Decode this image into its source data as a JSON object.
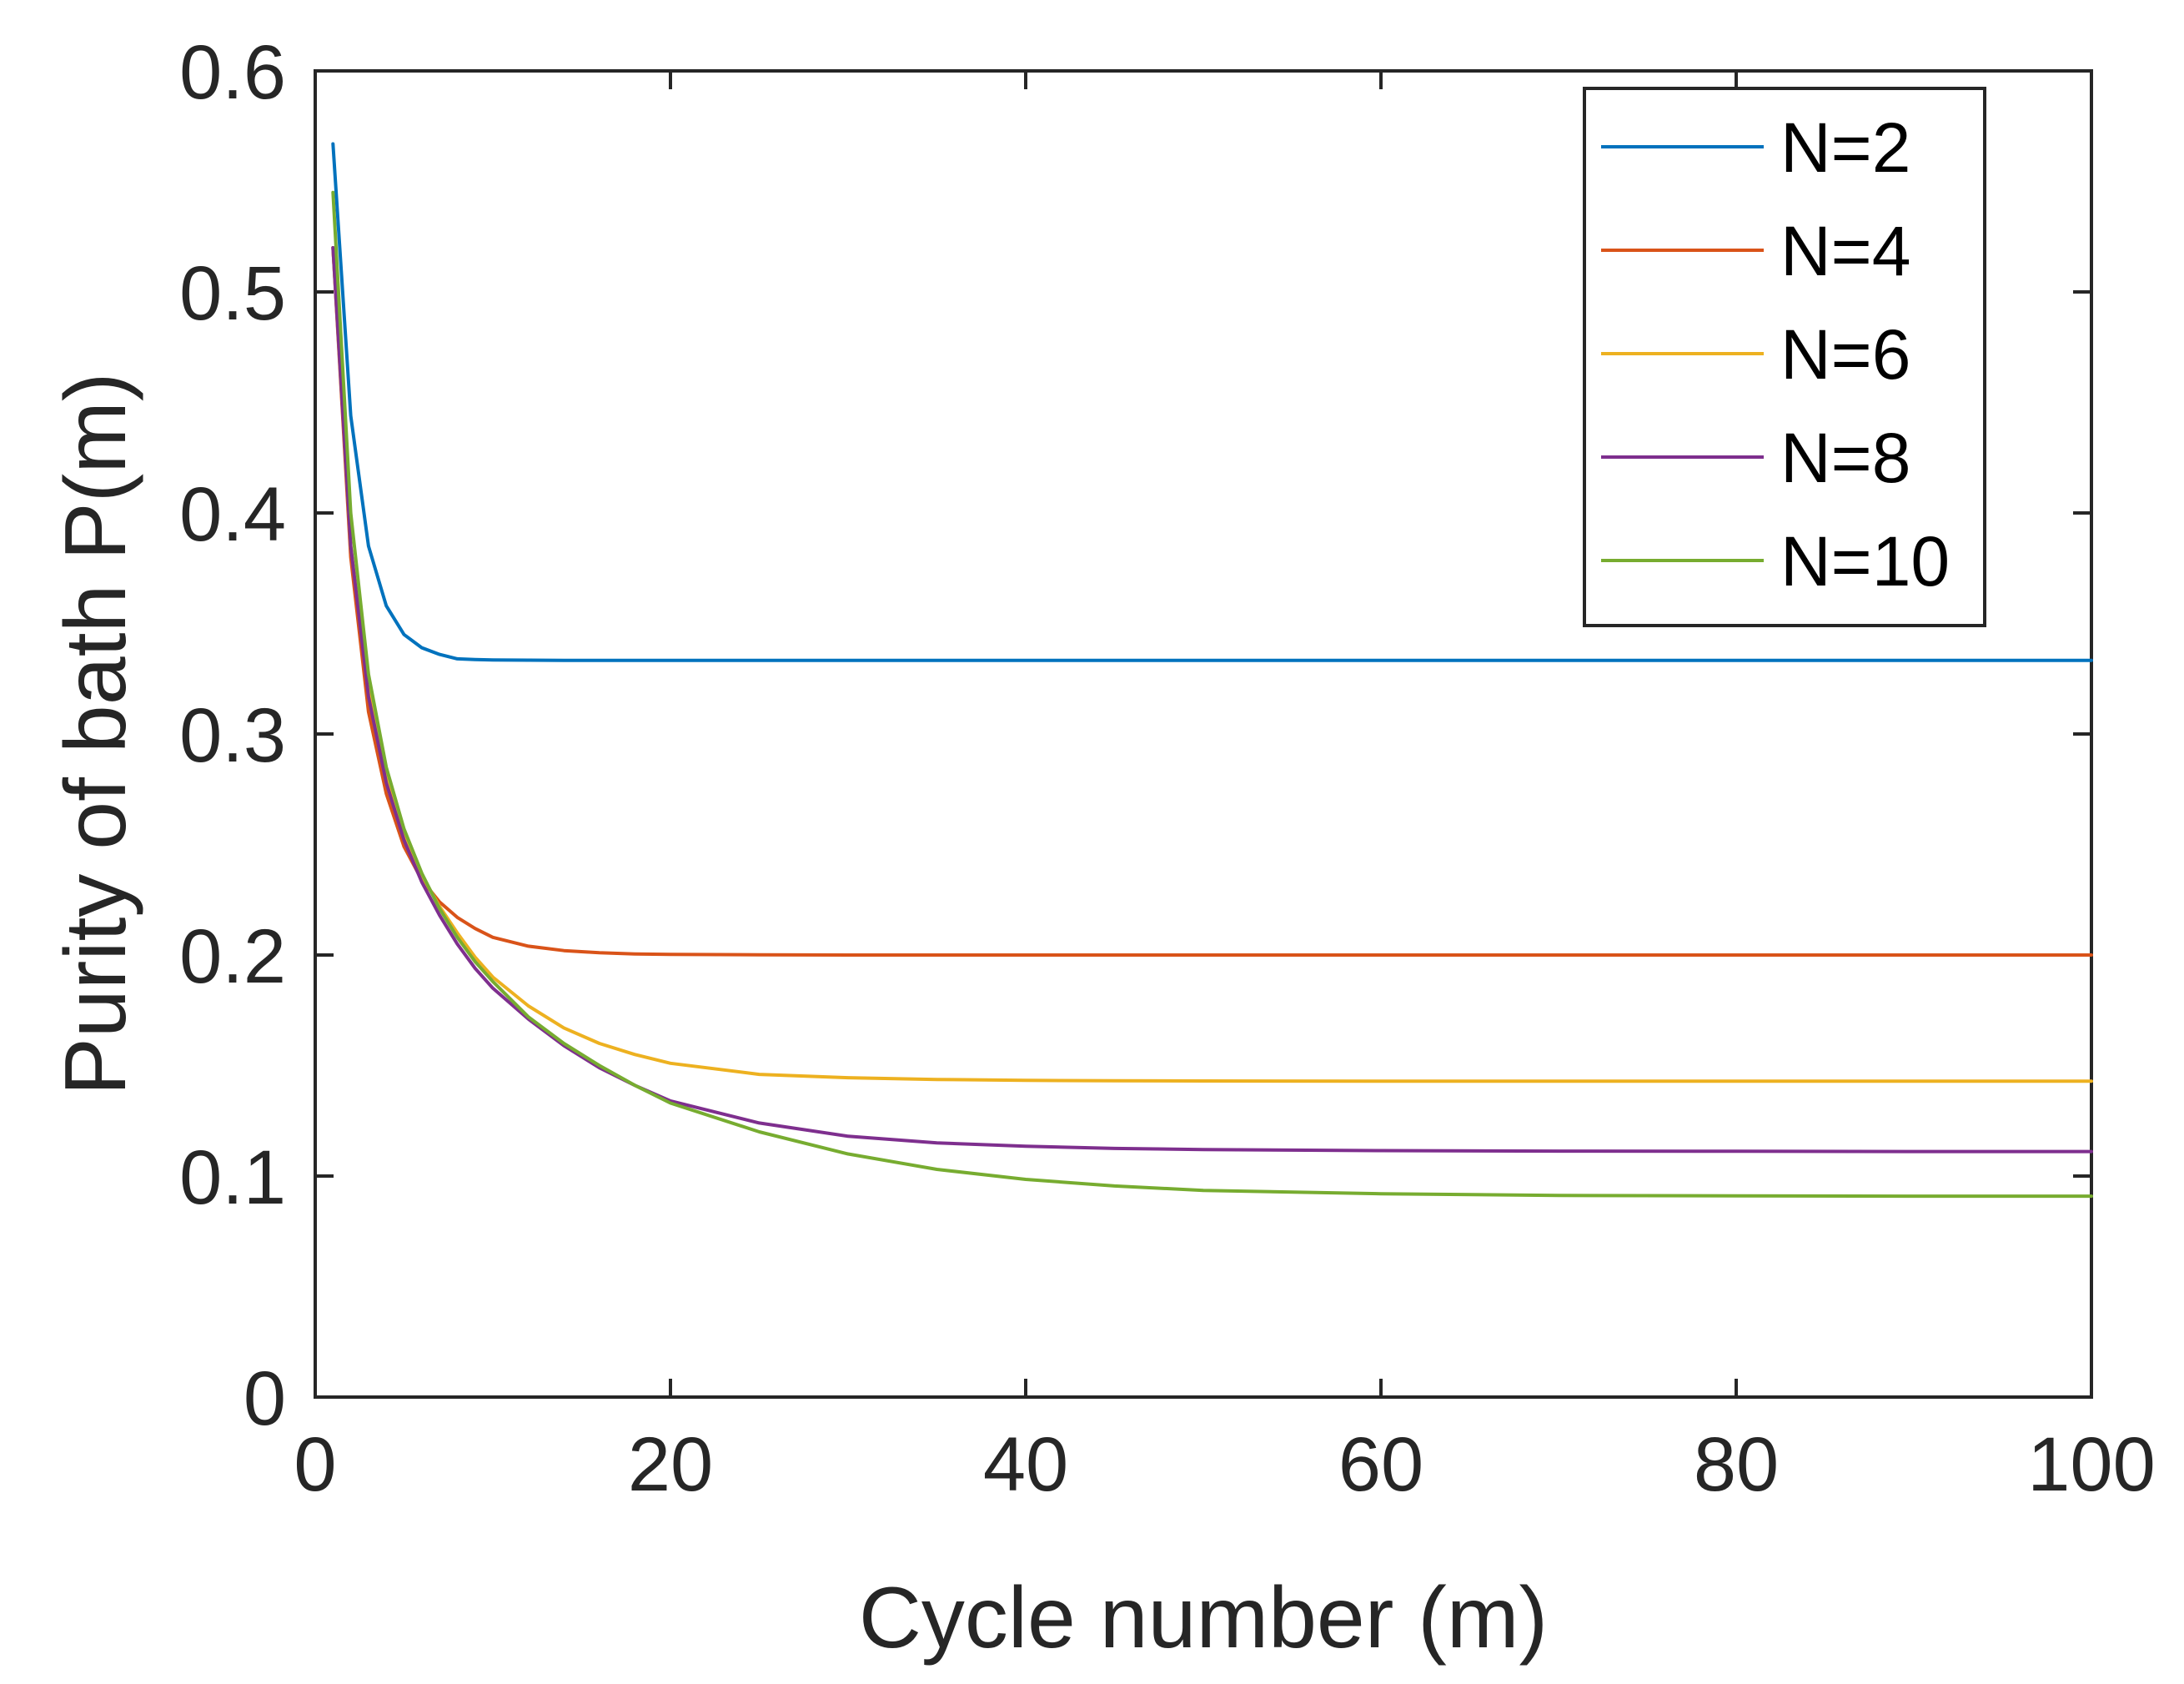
{
  "chart_data": {
    "type": "line",
    "title": "",
    "xlabel": "Cycle number (m)",
    "ylabel": "Purity of bath P(m)",
    "xlim": [
      0,
      100
    ],
    "ylim": [
      0,
      0.6
    ],
    "xticks": [
      0,
      20,
      40,
      60,
      80,
      100
    ],
    "xtick_labels": [
      "0",
      "20",
      "40",
      "60",
      "80",
      "100"
    ],
    "yticks": [
      0,
      0.1,
      0.2,
      0.3,
      0.4,
      0.5,
      0.6
    ],
    "ytick_labels": [
      "0",
      "0.1",
      "0.2",
      "0.3",
      "0.4",
      "0.5",
      "0.6"
    ],
    "grid": false,
    "legend_position": "top-right",
    "x": [
      1,
      2,
      3,
      4,
      5,
      6,
      7,
      8,
      9,
      10,
      12,
      14,
      16,
      18,
      20,
      25,
      30,
      35,
      40,
      45,
      50,
      60,
      70,
      80,
      90,
      100
    ],
    "series": [
      {
        "name": "N=2",
        "color": "#0072BD",
        "values": [
          0.567,
          0.444,
          0.385,
          0.358,
          0.345,
          0.339,
          0.336,
          0.334,
          0.3337,
          0.3335,
          0.3334,
          0.3333,
          0.3333,
          0.3333,
          0.3333,
          0.3333,
          0.3333,
          0.3333,
          0.3333,
          0.3333,
          0.3333,
          0.3333,
          0.3333,
          0.3333,
          0.3333,
          0.3333
        ]
      },
      {
        "name": "N=4",
        "color": "#D95319",
        "values": [
          0.52,
          0.38,
          0.31,
          0.273,
          0.249,
          0.234,
          0.224,
          0.217,
          0.212,
          0.208,
          0.204,
          0.202,
          0.201,
          0.2005,
          0.2003,
          0.2001,
          0.2,
          0.2,
          0.2,
          0.2,
          0.2,
          0.2,
          0.2,
          0.2,
          0.2,
          0.2
        ]
      },
      {
        "name": "N=6",
        "color": "#EDB120",
        "values": [
          0.52,
          0.385,
          0.32,
          0.28,
          0.254,
          0.236,
          0.222,
          0.21,
          0.199,
          0.19,
          0.177,
          0.167,
          0.16,
          0.155,
          0.151,
          0.146,
          0.1445,
          0.1437,
          0.1433,
          0.1431,
          0.143,
          0.1429,
          0.1429,
          0.1429,
          0.1429,
          0.1429
        ]
      },
      {
        "name": "N=8",
        "color": "#7E2F8E",
        "values": [
          0.52,
          0.385,
          0.317,
          0.278,
          0.252,
          0.233,
          0.218,
          0.205,
          0.194,
          0.185,
          0.171,
          0.159,
          0.149,
          0.141,
          0.134,
          0.124,
          0.118,
          0.115,
          0.1135,
          0.1125,
          0.112,
          0.1115,
          0.1113,
          0.1112,
          0.1111,
          0.1111
        ]
      },
      {
        "name": "N=10",
        "color": "#77AC30",
        "values": [
          0.545,
          0.4,
          0.327,
          0.285,
          0.257,
          0.237,
          0.221,
          0.208,
          0.197,
          0.188,
          0.172,
          0.16,
          0.15,
          0.141,
          0.133,
          0.12,
          0.11,
          0.103,
          0.0985,
          0.0955,
          0.0935,
          0.092,
          0.0912,
          0.091,
          0.0909,
          0.0909
        ]
      }
    ]
  }
}
